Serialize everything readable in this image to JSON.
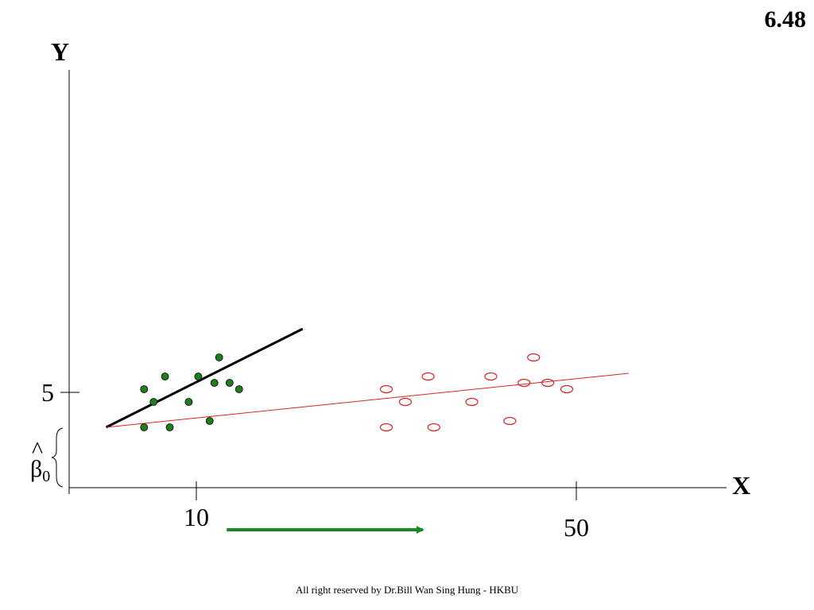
{
  "slide_number": "6.48",
  "footer": "All right reserved by Dr.Bill Wan Sing Hung - HKBU",
  "annotation": "β̂0",
  "chart_data": {
    "type": "scatter",
    "xlabel": "X",
    "ylabel": "Y",
    "xlim": [
      -2,
      52
    ],
    "ylim": [
      2.5,
      15
    ],
    "x_tick_labels": [
      {
        "value": 10,
        "label": "10"
      },
      {
        "value": 50,
        "label": "50"
      }
    ],
    "y_tick_labels": [
      {
        "value": 5,
        "label": "5"
      }
    ],
    "arrow": {
      "from_x": 13.2,
      "to_x": 34,
      "y": 1.2,
      "color": "#1a8a1a"
    },
    "series": [
      {
        "marker": "filled-circle",
        "color": "#1e7d1e",
        "points": [
          {
            "x": 4.5,
            "y": 5.1
          },
          {
            "x": 5.5,
            "y": 4.7
          },
          {
            "x": 6.7,
            "y": 5.5
          },
          {
            "x": 4.5,
            "y": 3.9
          },
          {
            "x": 7.2,
            "y": 3.9
          },
          {
            "x": 9.2,
            "y": 4.7
          },
          {
            "x": 10.2,
            "y": 5.5
          },
          {
            "x": 11.4,
            "y": 4.1
          },
          {
            "x": 11.9,
            "y": 5.3
          },
          {
            "x": 12.4,
            "y": 6.1
          },
          {
            "x": 13.5,
            "y": 5.3
          },
          {
            "x": 14.5,
            "y": 5.1
          }
        ]
      },
      {
        "marker": "open-circle",
        "color": "#dd2222",
        "points": [
          {
            "x": 30,
            "y": 5.1
          },
          {
            "x": 32,
            "y": 4.7
          },
          {
            "x": 34.4,
            "y": 5.5
          },
          {
            "x": 30,
            "y": 3.9
          },
          {
            "x": 35,
            "y": 3.9
          },
          {
            "x": 39,
            "y": 4.7
          },
          {
            "x": 41,
            "y": 5.5
          },
          {
            "x": 43,
            "y": 4.1
          },
          {
            "x": 44.5,
            "y": 5.3
          },
          {
            "x": 45.5,
            "y": 6.1
          },
          {
            "x": 47,
            "y": 5.3
          },
          {
            "x": 49,
            "y": 5.1
          }
        ]
      }
    ],
    "lines": [
      {
        "color": "#000000",
        "width": 3,
        "from": [
          0.5,
          3.9
        ],
        "to": [
          21.2,
          7.0
        ]
      },
      {
        "color": "#dd2222",
        "width": 1,
        "from": [
          0.5,
          3.9
        ],
        "to": [
          55.5,
          5.6
        ]
      }
    ]
  }
}
